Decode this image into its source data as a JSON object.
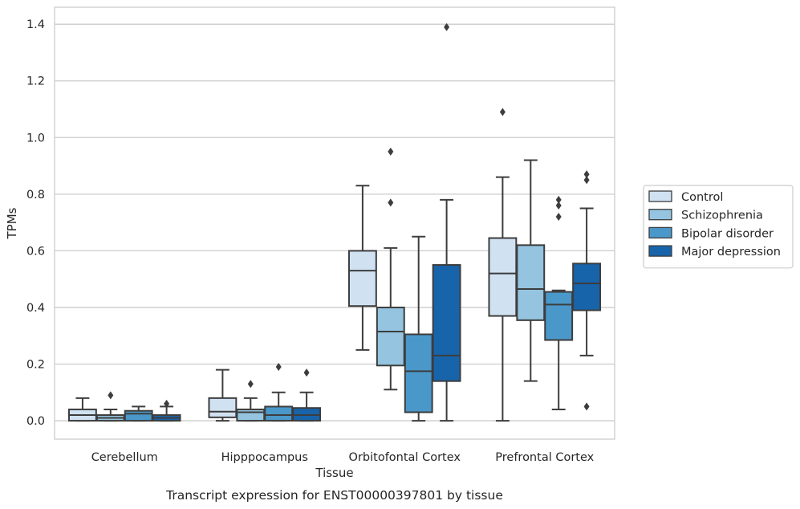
{
  "chart_data": {
    "type": "box",
    "xlabel": "Tissue",
    "ylabel": "TPMs",
    "caption": "Transcript expression for ENST00000397801 by tissue",
    "ylim": [
      -0.065,
      1.46
    ],
    "yticks": [
      0.0,
      0.2,
      0.4,
      0.6,
      0.8,
      1.0,
      1.2,
      1.4
    ],
    "ytick_labels": [
      "0.0",
      "0.2",
      "0.4",
      "0.6",
      "0.8",
      "1.0",
      "1.2",
      "1.4"
    ],
    "grid": "horizontal",
    "legend_position": "right",
    "categories": [
      "Cerebellum",
      "Hipppocampus",
      "Orbitofontal Cortex",
      "Prefrontal Cortex"
    ],
    "series": [
      {
        "name": "Control",
        "color": "#d0e1f2",
        "boxes": [
          {
            "whisker_low": 0.0,
            "q1": 0.0,
            "median": 0.02,
            "q3": 0.04,
            "whisker_high": 0.08,
            "outliers": []
          },
          {
            "whisker_low": 0.0,
            "q1": 0.012,
            "median": 0.032,
            "q3": 0.08,
            "whisker_high": 0.18,
            "outliers": []
          },
          {
            "whisker_low": 0.25,
            "q1": 0.405,
            "median": 0.53,
            "q3": 0.6,
            "whisker_high": 0.83,
            "outliers": []
          },
          {
            "whisker_low": 0.0,
            "q1": 0.37,
            "median": 0.52,
            "q3": 0.645,
            "whisker_high": 0.86,
            "outliers": [
              1.09
            ]
          }
        ]
      },
      {
        "name": "Schizophrenia",
        "color": "#94c4df",
        "boxes": [
          {
            "whisker_low": 0.0,
            "q1": 0.0,
            "median": 0.01,
            "q3": 0.02,
            "whisker_high": 0.04,
            "outliers": [
              0.09
            ]
          },
          {
            "whisker_low": 0.0,
            "q1": 0.0,
            "median": 0.03,
            "q3": 0.04,
            "whisker_high": 0.08,
            "outliers": [
              0.13
            ]
          },
          {
            "whisker_low": 0.11,
            "q1": 0.195,
            "median": 0.315,
            "q3": 0.4,
            "whisker_high": 0.61,
            "outliers": [
              0.77,
              0.95
            ]
          },
          {
            "whisker_low": 0.14,
            "q1": 0.355,
            "median": 0.465,
            "q3": 0.62,
            "whisker_high": 0.92,
            "outliers": []
          }
        ]
      },
      {
        "name": "Bipolar disorder",
        "color": "#4a98c9",
        "boxes": [
          {
            "whisker_low": 0.0,
            "q1": 0.0,
            "median": 0.025,
            "q3": 0.035,
            "whisker_high": 0.05,
            "outliers": []
          },
          {
            "whisker_low": 0.0,
            "q1": 0.0,
            "median": 0.02,
            "q3": 0.05,
            "whisker_high": 0.1,
            "outliers": [
              0.19
            ]
          },
          {
            "whisker_low": 0.0,
            "q1": 0.03,
            "median": 0.175,
            "q3": 0.305,
            "whisker_high": 0.65,
            "outliers": []
          },
          {
            "whisker_low": 0.04,
            "q1": 0.285,
            "median": 0.41,
            "q3": 0.455,
            "whisker_high": 0.46,
            "outliers": [
              0.72,
              0.76,
              0.78
            ]
          }
        ]
      },
      {
        "name": "Major depression",
        "color": "#1764ab",
        "boxes": [
          {
            "whisker_low": 0.0,
            "q1": 0.0,
            "median": 0.01,
            "q3": 0.02,
            "whisker_high": 0.05,
            "outliers": [
              0.06
            ]
          },
          {
            "whisker_low": 0.0,
            "q1": 0.0,
            "median": 0.02,
            "q3": 0.045,
            "whisker_high": 0.1,
            "outliers": [
              0.17
            ]
          },
          {
            "whisker_low": 0.0,
            "q1": 0.14,
            "median": 0.23,
            "q3": 0.55,
            "whisker_high": 0.78,
            "outliers": [
              1.39
            ]
          },
          {
            "whisker_low": 0.23,
            "q1": 0.39,
            "median": 0.485,
            "q3": 0.555,
            "whisker_high": 0.75,
            "outliers": [
              0.05,
              0.85,
              0.87
            ]
          }
        ]
      }
    ]
  }
}
